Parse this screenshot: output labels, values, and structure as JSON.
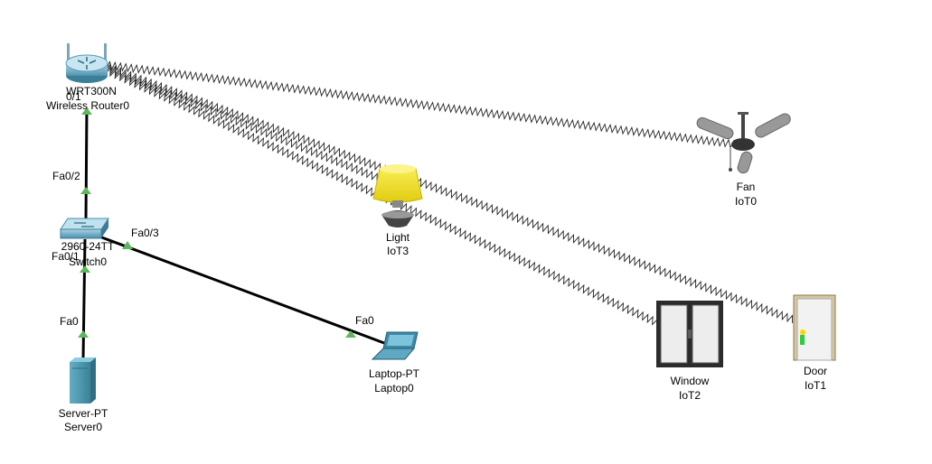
{
  "devices": {
    "router": {
      "model": "WRT300N",
      "name": "Wireless Router0"
    },
    "switch": {
      "model": "2960-24TT",
      "name": "Switch0"
    },
    "server": {
      "model": "Server-PT",
      "name": "Server0"
    },
    "laptop": {
      "model": "Laptop-PT",
      "name": "Laptop0"
    },
    "light": {
      "model": "Light",
      "name": "IoT3"
    },
    "fan": {
      "model": "Fan",
      "name": "IoT0"
    },
    "window": {
      "model": "Window",
      "name": "IoT2"
    },
    "door": {
      "model": "Door",
      "name": "IoT1"
    }
  },
  "ports": {
    "router_down": "0/1",
    "switch_up": "Fa0/2",
    "switch_right": "Fa0/3",
    "switch_down": "Fa0/1",
    "server_up": "Fa0",
    "laptop_port": "Fa0"
  },
  "colors": {
    "link": "#000000",
    "port_indicator": "#5cb85c",
    "wireless": "#222222",
    "device_blue": "#4a9fb5",
    "lamp_shade": "#f4e31c"
  }
}
